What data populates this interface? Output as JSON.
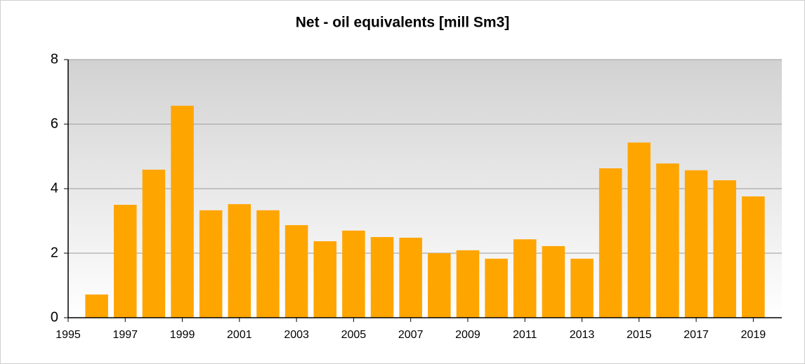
{
  "chart_data": {
    "type": "bar",
    "title": "Net - oil equivalents [mill Sm3]",
    "x": [
      1996,
      1997,
      1998,
      1999,
      2000,
      2001,
      2002,
      2003,
      2004,
      2005,
      2006,
      2007,
      2008,
      2009,
      2010,
      2011,
      2012,
      2013,
      2014,
      2015,
      2016,
      2017,
      2018,
      2019
    ],
    "values": [
      0.72,
      3.5,
      4.59,
      6.57,
      3.33,
      3.52,
      3.33,
      2.87,
      2.37,
      2.7,
      2.5,
      2.48,
      2.0,
      2.09,
      1.83,
      2.43,
      2.22,
      1.83,
      4.63,
      5.43,
      4.78,
      4.57,
      4.26,
      3.76
    ],
    "color": "#ffa500",
    "xlim": [
      1995,
      2020
    ],
    "xticks": [
      1995,
      1997,
      1999,
      2001,
      2003,
      2005,
      2007,
      2009,
      2011,
      2013,
      2015,
      2017,
      2019
    ],
    "ylim": [
      0,
      8
    ],
    "yticks": [
      0,
      2,
      4,
      6,
      8
    ],
    "grid": true
  }
}
